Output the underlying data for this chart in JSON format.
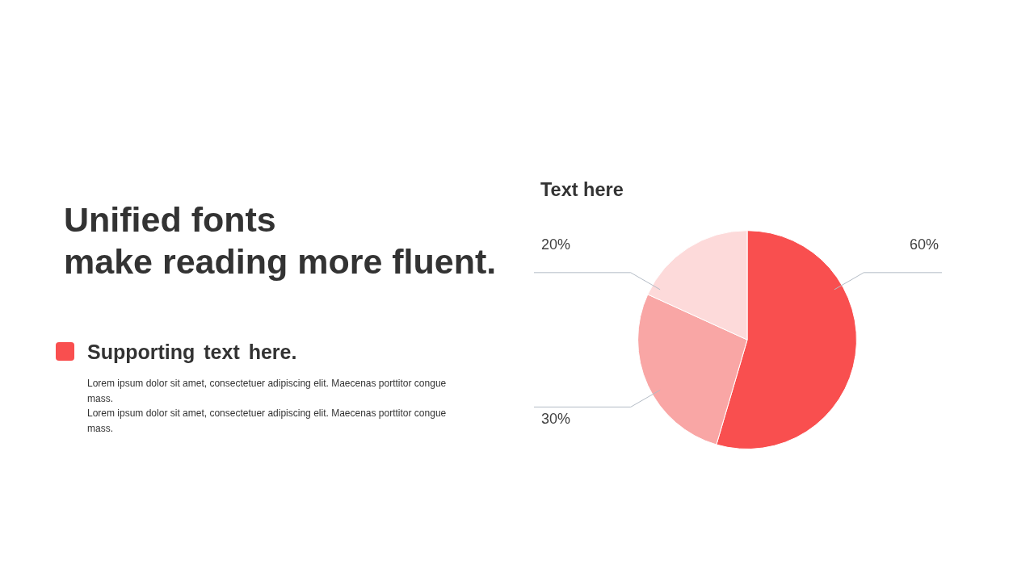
{
  "chart_data": {
    "type": "pie",
    "title": "Text here",
    "categories": [
      null,
      null,
      null
    ],
    "values": [
      60,
      30,
      20
    ],
    "colors": [
      "#f94f4f",
      "#f9a6a5",
      "#fddada"
    ],
    "value_labels": [
      "60%",
      "30%",
      "20%"
    ],
    "annotations": [
      "Unified fonts\nmake reading more fluent.",
      "Supporting text here.",
      "Lorem ipsum dolor sit amet, consectetuer adipiscing elit. Maecenas porttitor congue mass.",
      "Lorem ipsum dolor sit amet, consectetuer adipiscing elit. Maecenas porttitor congue mass."
    ]
  }
}
